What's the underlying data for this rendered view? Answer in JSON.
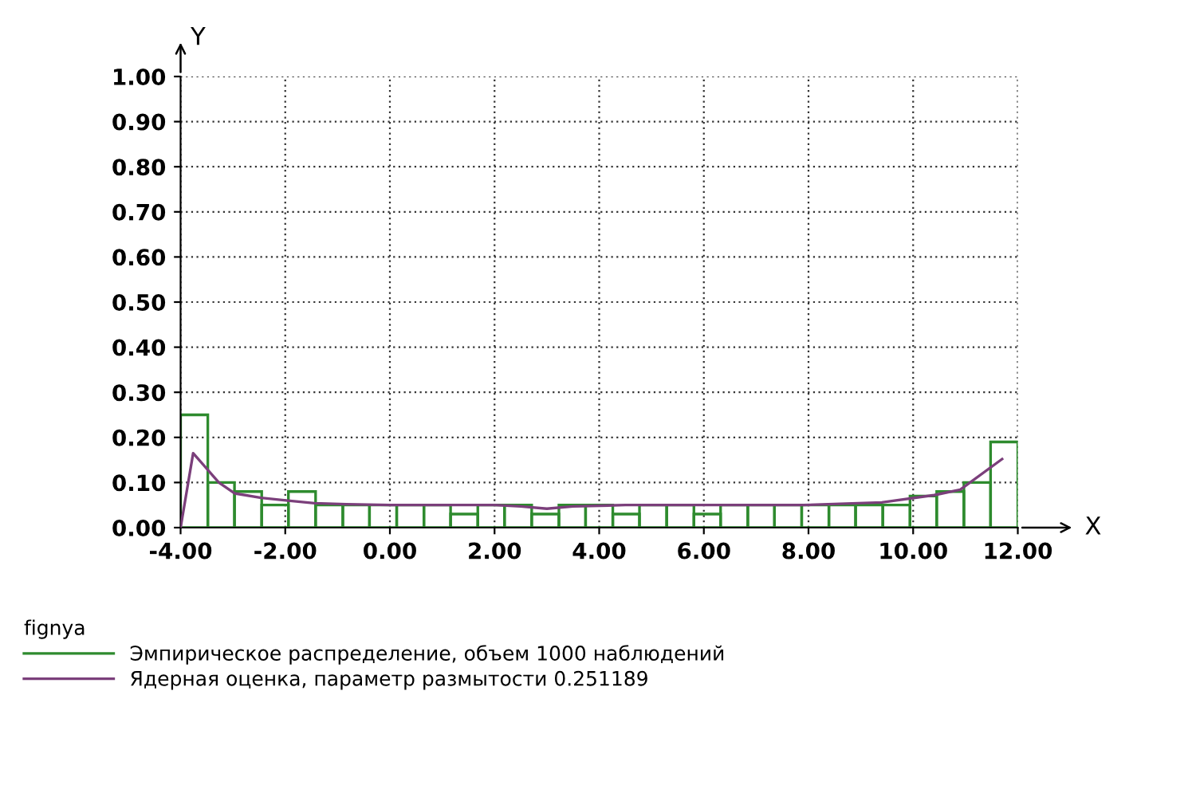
{
  "chart_data": {
    "type": "histogram",
    "xlabel": "X",
    "ylabel": "Y",
    "legend_title": "fignya",
    "bins": [
      -4.0,
      -3.48,
      -2.97,
      -2.45,
      -1.94,
      -1.42,
      -0.9,
      -0.39,
      0.13,
      0.65,
      1.16,
      1.68,
      2.19,
      2.71,
      3.23,
      3.74,
      4.26,
      4.77,
      5.29,
      5.81,
      6.32,
      6.84,
      7.35,
      7.87,
      8.39,
      8.9,
      9.42,
      9.94,
      10.45,
      10.97,
      11.48,
      12.0
    ],
    "series": [
      {
        "name": "Эмпирическое распределение, объем 1000 наблюдений",
        "color": "#2e8b2e",
        "values": [
          0.25,
          0.1,
          0.08,
          0.05,
          0.08,
          0.05,
          0.05,
          0.05,
          0.05,
          0.05,
          0.03,
          0.05,
          0.05,
          0.03,
          0.05,
          0.05,
          0.03,
          0.05,
          0.05,
          0.03,
          0.05,
          0.05,
          0.05,
          0.05,
          0.05,
          0.05,
          0.05,
          0.07,
          0.08,
          0.1,
          0.19
        ]
      },
      {
        "name": "Ядерная оценка, параметр размытости 0.251189",
        "type": "line",
        "color": "#7b3f7b",
        "x": [
          -4.0,
          -3.76,
          -3.27,
          -2.97,
          -2.46,
          -1.95,
          -1.44,
          -0.83,
          0.0,
          1.0,
          2.0,
          2.5,
          3.0,
          3.5,
          4.5,
          6.0,
          7.9,
          9.4,
          10.4,
          10.9,
          11.7
        ],
        "values": [
          0.0,
          0.165,
          0.1,
          0.076,
          0.066,
          0.06,
          0.054,
          0.052,
          0.05,
          0.05,
          0.05,
          0.047,
          0.042,
          0.047,
          0.05,
          0.05,
          0.05,
          0.056,
          0.072,
          0.084,
          0.152
        ]
      }
    ],
    "xlim": [
      -4,
      12
    ],
    "ylim": [
      0,
      1.0
    ],
    "xticks": [
      {
        "value": -4,
        "label": "-4.00"
      },
      {
        "value": -2,
        "label": "-2.00"
      },
      {
        "value": 0,
        "label": "0.00"
      },
      {
        "value": 2,
        "label": "2.00"
      },
      {
        "value": 4,
        "label": "4.00"
      },
      {
        "value": 6,
        "label": "6.00"
      },
      {
        "value": 8,
        "label": "8.00"
      },
      {
        "value": 10,
        "label": "10.00"
      },
      {
        "value": 12,
        "label": "12.00"
      }
    ],
    "yticks": [
      {
        "value": 0,
        "label": "0.00"
      },
      {
        "value": 0.1,
        "label": "0.10"
      },
      {
        "value": 0.2,
        "label": "0.20"
      },
      {
        "value": 0.3,
        "label": "0.30"
      },
      {
        "value": 0.4,
        "label": "0.40"
      },
      {
        "value": 0.5,
        "label": "0.50"
      },
      {
        "value": 0.6,
        "label": "0.60"
      },
      {
        "value": 0.7,
        "label": "0.70"
      },
      {
        "value": 0.8,
        "label": "0.80"
      },
      {
        "value": 0.9,
        "label": "0.90"
      },
      {
        "value": 1.0,
        "label": "1.00"
      }
    ],
    "grid": true,
    "legend": "bottom left",
    "line_style": "solid",
    "marker": "none"
  }
}
